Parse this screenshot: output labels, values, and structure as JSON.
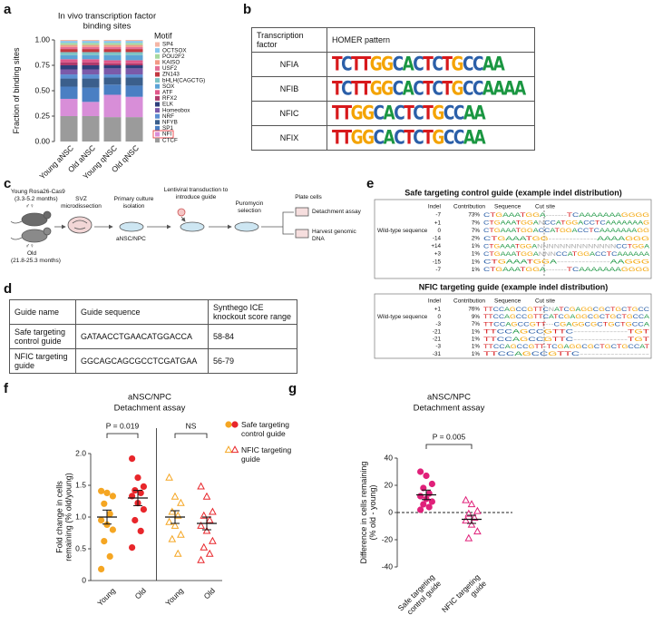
{
  "panel_labels": [
    "a",
    "b",
    "c",
    "d",
    "e",
    "f",
    "g"
  ],
  "chart_data": [
    {
      "type": "stacked_bar",
      "title": [
        "In vivo transcription factor",
        "binding sites"
      ],
      "ylabel": "Fraction of binding sites",
      "categories": [
        "Young aNSC",
        "Old aNSC",
        "Young qNSC",
        "Old qNSC"
      ],
      "legend_title": "Motif",
      "highlight_series": "NFI",
      "ylim": [
        0,
        1
      ],
      "yticks": [
        {
          "value": 0,
          "label": "0.00"
        },
        0.25,
        {
          "value": 0.5,
          "label": "0.50"
        },
        0.75,
        {
          "value": 1,
          "label": "1.00"
        }
      ],
      "series": [
        {
          "name": "SP4",
          "color": "#f4b6a6",
          "values": [
            0.01,
            0.01,
            0.01,
            0.01
          ]
        },
        {
          "name": "OCTSOX",
          "color": "#86c6ee",
          "values": [
            0.02,
            0.02,
            0.02,
            0.02
          ]
        },
        {
          "name": "POU2F2",
          "color": "#a6d8a0",
          "values": [
            0.02,
            0.02,
            0.02,
            0.02
          ]
        },
        {
          "name": "KAISO",
          "color": "#f29a86",
          "values": [
            0.02,
            0.02,
            0.02,
            0.02
          ]
        },
        {
          "name": "USF2",
          "color": "#e46f96",
          "values": [
            0.02,
            0.02,
            0.02,
            0.02
          ]
        },
        {
          "name": "ZN143",
          "color": "#c2383f",
          "values": [
            0.03,
            0.03,
            0.03,
            0.03
          ]
        },
        {
          "name": "bHLH(CAGCTG)",
          "color": "#7cc2c4",
          "values": [
            0.03,
            0.03,
            0.03,
            0.03
          ]
        },
        {
          "name": "SOX",
          "color": "#5ca3d6",
          "values": [
            0.04,
            0.04,
            0.05,
            0.05
          ]
        },
        {
          "name": "ATF",
          "color": "#e0588a",
          "values": [
            0.03,
            0.03,
            0.03,
            0.03
          ]
        },
        {
          "name": "RFX2",
          "color": "#b03a6c",
          "values": [
            0.03,
            0.03,
            0.02,
            0.02
          ]
        },
        {
          "name": "ELK",
          "color": "#2e3f7c",
          "values": [
            0.04,
            0.04,
            0.03,
            0.03
          ]
        },
        {
          "name": "Homeobox",
          "color": "#7b5aa9",
          "values": [
            0.05,
            0.05,
            0.06,
            0.06
          ]
        },
        {
          "name": "NRF",
          "color": "#5b8fd2",
          "values": [
            0.04,
            0.04,
            0.03,
            0.03
          ]
        },
        {
          "name": "NFYB",
          "color": "#3b5f8c",
          "values": [
            0.08,
            0.09,
            0.07,
            0.08
          ]
        },
        {
          "name": "SP1",
          "color": "#4a7fc3",
          "values": [
            0.12,
            0.14,
            0.1,
            0.11
          ]
        },
        {
          "name": "NFI",
          "color": "#d88ed8",
          "values": [
            0.17,
            0.14,
            0.22,
            0.2
          ]
        },
        {
          "name": "CTCF",
          "color": "#9b9b9b",
          "values": [
            0.25,
            0.25,
            0.24,
            0.24
          ]
        }
      ]
    },
    {
      "type": "dot",
      "title": "aNSC/NPC",
      "title_color": "#e8262b",
      "subtitle": "Detachment assay",
      "ylabel": "Fold change in cells remaining (% old/young)",
      "categories": [
        "Young",
        "Old",
        "Young",
        "Old"
      ],
      "divider_after": 1,
      "x_axis": true,
      "ylim": [
        0,
        2
      ],
      "yticks": [
        0,
        0.5,
        {
          "value": 1,
          "label": "1.0"
        },
        1.5,
        {
          "value": 2,
          "label": "2.0"
        }
      ],
      "legend": [
        {
          "name": "Safe targeting control guide",
          "marker": "circle",
          "filled": true,
          "colors": [
            "#f5a623",
            "#e8262b"
          ]
        },
        {
          "name": "NFIC targeting guide",
          "marker": "triangle",
          "filled": false,
          "colors": [
            "#f5a623",
            "#e8262b"
          ]
        }
      ],
      "groups": [
        {
          "marker": "circle",
          "filled": true,
          "color": "#f5a623",
          "values": [
            1.41,
            1.38,
            1.33,
            1.21,
            1.05,
            0.95,
            0.88,
            0.8,
            0.62,
            0.38,
            0.18
          ],
          "mean": 1.0,
          "sem": 0.11
        },
        {
          "marker": "circle",
          "filled": true,
          "color": "#e8262b",
          "values": [
            1.92,
            1.62,
            1.48,
            1.42,
            1.38,
            1.33,
            1.22,
            1.12,
            0.95,
            0.78,
            0.52
          ],
          "mean": 1.3,
          "sem": 0.12
        },
        {
          "marker": "triangle",
          "filled": false,
          "color": "#f5a623",
          "values": [
            1.62,
            1.32,
            1.22,
            1.08,
            1.02,
            0.92,
            0.86,
            0.72,
            0.65,
            0.42
          ],
          "mean": 1.0,
          "sem": 0.1
        },
        {
          "marker": "triangle",
          "filled": false,
          "color": "#e8262b",
          "values": [
            1.48,
            1.32,
            1.08,
            1.02,
            0.95,
            0.86,
            0.78,
            0.62,
            0.52,
            0.42,
            0.32
          ],
          "mean": 0.9,
          "sem": 0.1
        }
      ],
      "annotations": [
        {
          "text": "P = 0.019",
          "between": [
            0,
            1
          ]
        },
        {
          "text": "NS",
          "between": [
            2,
            3
          ]
        }
      ]
    },
    {
      "type": "dot",
      "title": "aNSC/NPC",
      "title_color": "#e8262b",
      "subtitle": "Detachment assay",
      "ylabel": "Difference in cells remaining (% old - young)",
      "categories": [
        "Safe targeting control guide",
        "NFIC targeting guide"
      ],
      "zero_line": "dashed",
      "ylim": [
        -40,
        40
      ],
      "yticks": [
        -40,
        -20,
        0,
        20,
        40
      ],
      "groups": [
        {
          "marker": "circle",
          "filled": true,
          "color": "#e0207a",
          "values": [
            30,
            27,
            21,
            18,
            14,
            12,
            10,
            8,
            6,
            4,
            2
          ],
          "mean": 13,
          "sem": 3.5
        },
        {
          "marker": "triangle",
          "filled": false,
          "color": "#e0207a",
          "values": [
            9,
            6,
            1,
            -1,
            -4,
            -6,
            -9,
            -14,
            -19
          ],
          "mean": -5,
          "sem": 3
        }
      ],
      "annotations": [
        {
          "text": "P = 0.005",
          "between": [
            0,
            1
          ]
        }
      ]
    }
  ],
  "homer_table": {
    "headers": [
      "Transcription factor",
      "HOMER pattern"
    ],
    "rows": [
      {
        "factor": "NFIA",
        "pattern": "TCTTGGCACTCTGCCAA"
      },
      {
        "factor": "NFIB",
        "pattern": "TCTTGGCACTCTGCCAAAA"
      },
      {
        "factor": "NFIC",
        "pattern": "TTGGCACTCTGCCAA"
      },
      {
        "factor": "NFIX",
        "pattern": "TTGGCACTCTGCCAA"
      }
    ]
  },
  "workflow": {
    "young": {
      "strain": "Young Rosa26-Cas9",
      "age": "(3.3-5.2 months)",
      "sex": "♂♀"
    },
    "old": {
      "label": "Old",
      "age": "(21.8-25.3 months)",
      "sex": "♂♀"
    },
    "steps": [
      "SVZ microdissection",
      "Primary culture isolation",
      "Lentiviral transduction to introduce guide",
      "Puromycin selection",
      "Plate cells"
    ],
    "cell_label": "aNSC/NPC",
    "outputs": [
      "Detachment assay",
      "Harvest genomic DNA"
    ]
  },
  "guide_table": {
    "headers": [
      "Guide name",
      "Guide sequence",
      "Synthego ICE knockout score range"
    ],
    "rows": [
      [
        "Safe targeting control guide",
        "GATAACCTGAACATGGACCA",
        "58-84"
      ],
      [
        "NFIC targeting guide",
        "GGCAGCAGCGCCTCGATGAA",
        "56-79"
      ]
    ]
  },
  "indel_panels": [
    {
      "title": "Safe targeting control guide (example indel distribution)",
      "headers": [
        "Indel",
        "Contribution",
        "Sequence",
        "Cut site"
      ],
      "wild_type_label": "Wild-type sequence",
      "wild_type_row": 2,
      "rows": [
        {
          "indel": "-7",
          "contribution": "73%",
          "sequence": "CTGAAATGGA-------TCAAAAAAAGGGG"
        },
        {
          "indel": "+1",
          "contribution": "7%",
          "sequence": "CTGAAATGGANCCATGGACCTCAAAAAAAG"
        },
        {
          "indel": "0",
          "contribution": "7%",
          "sequence": "CTGAAATGGACCATGGACCTCAAAAAAAGG"
        },
        {
          "indel": "-14",
          "contribution": "2%",
          "sequence": "CTGAAATGG--------------AAAAGGG"
        },
        {
          "indel": "+14",
          "contribution": "1%",
          "sequence": "CTGAAATGGANNNNNNNNNNNNNNCCTGGA"
        },
        {
          "indel": "+3",
          "contribution": "1%",
          "sequence": "CTGAAATGGANNNCCATGGACCTCAAAAAA"
        },
        {
          "indel": "-15",
          "contribution": "1%",
          "sequence": "CTGAAATGGA---------------AAGGG"
        },
        {
          "indel": "-7",
          "contribution": "1%",
          "sequence": "CTGAAATGGA-------TCAAAAAAAGGGG"
        }
      ]
    },
    {
      "title": "NFIC targeting guide (example indel distribution)",
      "headers": [
        "Indel",
        "Contribution",
        "Sequence",
        "Cut site"
      ],
      "wild_type_label": "Wild-type sequence",
      "wild_type_row": 1,
      "rows": [
        {
          "indel": "+1",
          "contribution": "76%",
          "sequence": "TTCCAGCCGTTCNATCGAGGCGCTGCTGCC"
        },
        {
          "indel": "0",
          "contribution": "9%",
          "sequence": "TTCCAGCCGTTCATCGAGGCGCTGCTGCCA"
        },
        {
          "indel": "-3",
          "contribution": "7%",
          "sequence": "TTCCAGCCGTT---CGAGGCGCTGCTGCCA"
        },
        {
          "indel": "-21",
          "contribution": "1%",
          "sequence": "TTCCAGCCGTTC---------------TGT"
        },
        {
          "indel": "-21",
          "contribution": "1%",
          "sequence": "TTCCAGCCGTTC---------------TGT"
        },
        {
          "indel": "-3",
          "contribution": "1%",
          "sequence": "TTCCAGCCGTT-TCGAGGCGCTGCTGCCAT"
        },
        {
          "indel": "-31",
          "contribution": "1%",
          "sequence": "TTCCAGCCGTTC------------------"
        }
      ]
    }
  ]
}
